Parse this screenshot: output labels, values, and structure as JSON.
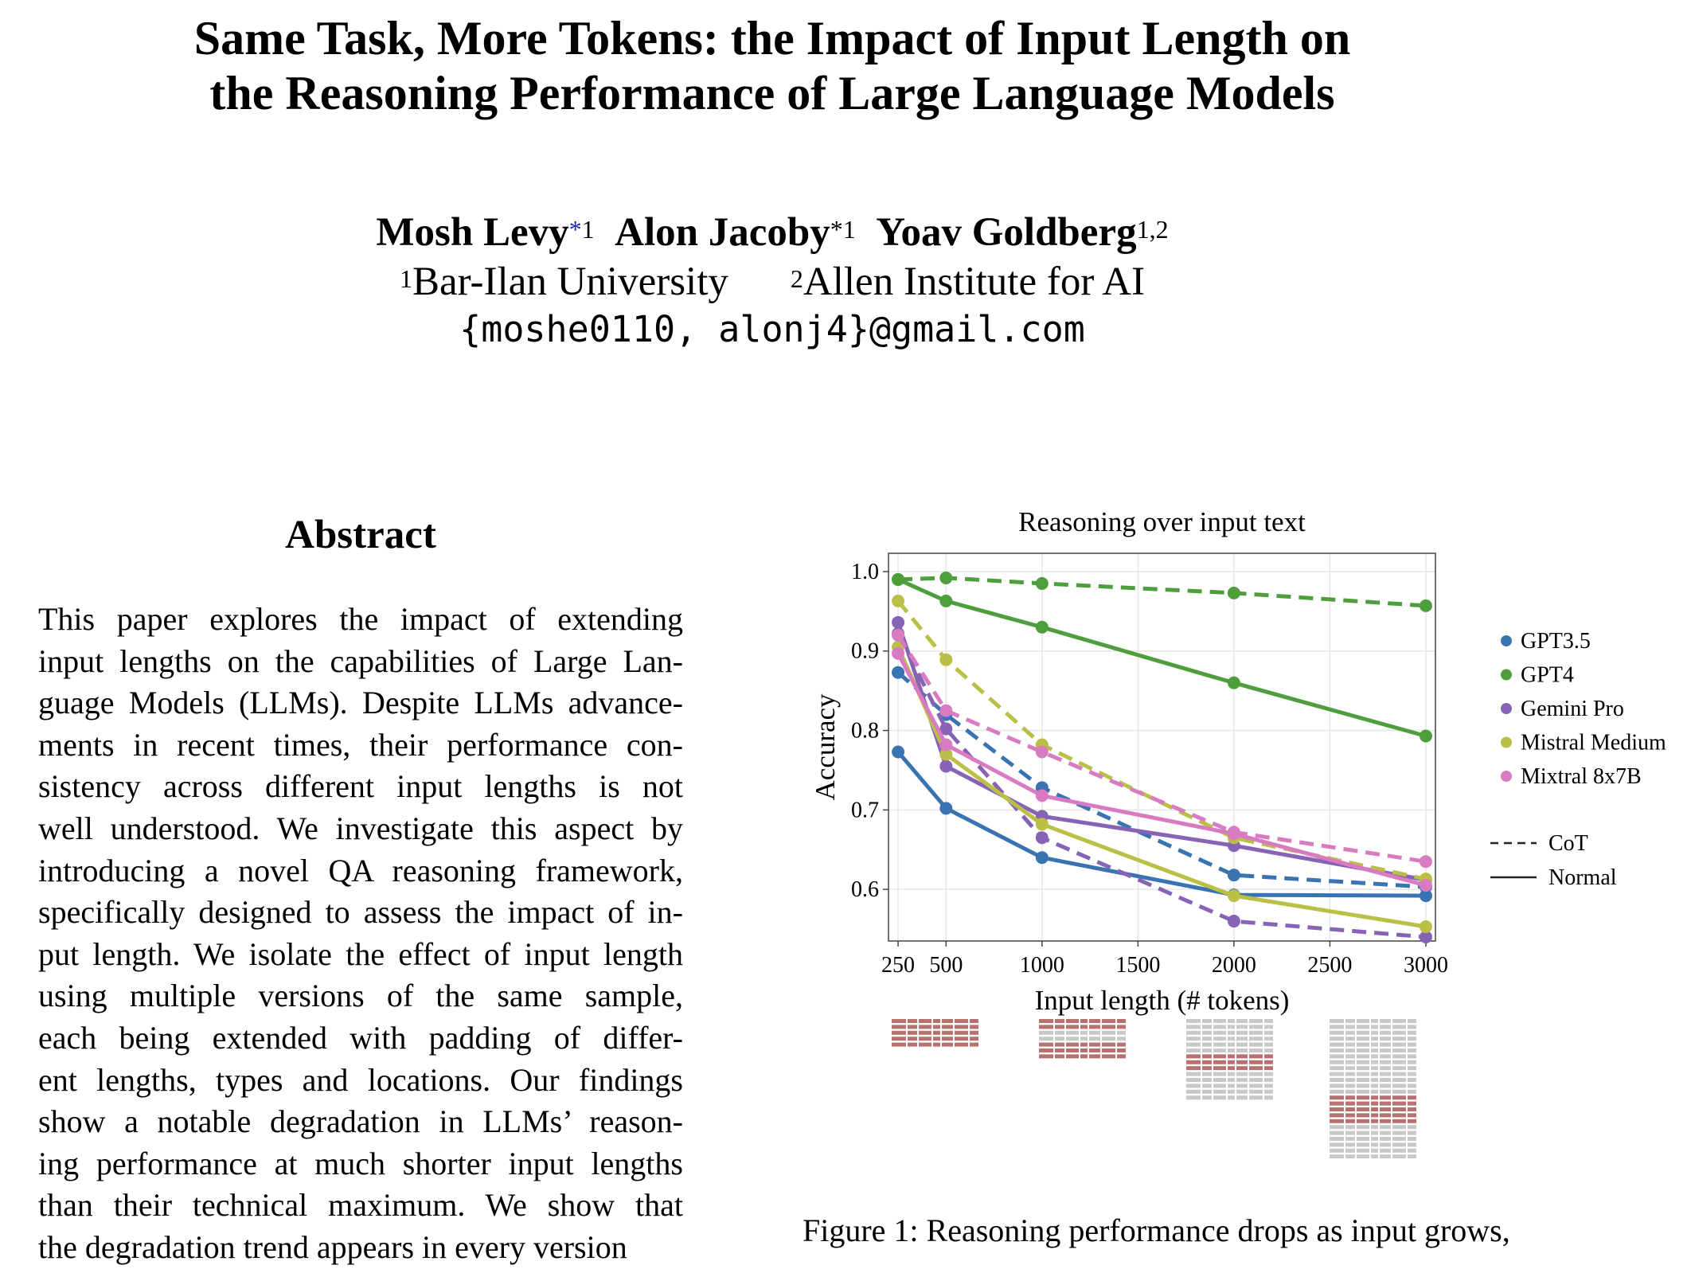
{
  "paper": {
    "title_line1": "Same Task, More Tokens: the Impact of Input Length on",
    "title_line2": "the Reasoning Performance of Large Language Models",
    "authors": [
      {
        "name": "Mosh Levy",
        "mark": "*",
        "sup": "1"
      },
      {
        "name": "Alon Jacoby",
        "mark": "*",
        "sup": "1"
      },
      {
        "name": "Yoav Goldberg",
        "mark": "",
        "sup": "1,2"
      }
    ],
    "affiliations": [
      {
        "sup": "1",
        "name": "Bar-Ilan University"
      },
      {
        "sup": "2",
        "name": "Allen Institute for AI"
      }
    ],
    "email": "{moshe0110, alonj4}@gmail.com"
  },
  "abstract": {
    "heading": "Abstract",
    "lines": [
      "This paper explores the impact of extending",
      "input lengths on the capabilities of Large Lan-",
      "guage Models (LLMs). Despite LLMs advance-",
      "ments in recent times, their performance con-",
      "sistency across different input lengths is not",
      "well understood. We investigate this aspect by",
      "introducing a novel QA reasoning framework,",
      "specifically designed to assess the impact of in-",
      "put length. We isolate the effect of input length",
      "using multiple versions of the same sample,",
      "each being extended with padding of differ-",
      "ent lengths, types and locations. Our findings",
      "show a notable degradation in LLMs’ reason-",
      "ing performance at much shorter input lengths",
      "than their technical maximum. We show that",
      "the degradation trend appears in every version"
    ]
  },
  "figure": {
    "caption": "Figure 1: Reasoning performance drops as input grows,"
  },
  "chart_data": {
    "type": "line",
    "title": "Reasoning over input text",
    "xlabel": "Input length (# tokens)",
    "ylabel": "Accuracy",
    "xlim": [
      200,
      3050
    ],
    "ylim": [
      0.535,
      1.023
    ],
    "xticks": [
      250,
      500,
      1000,
      1500,
      2000,
      2500,
      3000
    ],
    "yticks": [
      0.6,
      0.7,
      0.8,
      0.9,
      1.0
    ],
    "ytick_labels": [
      "0.6",
      "0.7",
      "0.8",
      "0.9",
      "1.0"
    ],
    "grid": true,
    "legend_position": "right",
    "x": [
      250,
      500,
      1000,
      2000,
      3000
    ],
    "series": [
      {
        "name": "GPT3.5",
        "color": "#3a73b2",
        "normal": [
          0.773,
          0.702,
          0.64,
          0.593,
          0.592
        ],
        "cot": [
          0.873,
          0.82,
          0.728,
          0.618,
          0.603
        ]
      },
      {
        "name": "GPT4",
        "color": "#4f9e3e",
        "normal": [
          0.99,
          0.963,
          0.93,
          0.86,
          0.793
        ],
        "cot": [
          0.99,
          0.992,
          0.985,
          0.973,
          0.957
        ]
      },
      {
        "name": "Gemini Pro",
        "color": "#8663b5",
        "normal": [
          0.936,
          0.755,
          0.692,
          0.655,
          0.612
        ],
        "cot": [
          0.922,
          0.802,
          0.665,
          0.56,
          0.54
        ]
      },
      {
        "name": "Mistral Medium",
        "color": "#bcbf45",
        "normal": [
          0.905,
          0.77,
          0.682,
          0.592,
          0.553
        ],
        "cot": [
          0.963,
          0.889,
          0.782,
          0.665,
          0.613
        ]
      },
      {
        "name": "Mixtral 8x7B",
        "color": "#d97bc3",
        "normal": [
          0.897,
          0.782,
          0.718,
          0.67,
          0.605
        ],
        "cot": [
          0.92,
          0.825,
          0.773,
          0.672,
          0.635
        ]
      }
    ],
    "line_styles": [
      {
        "label": "CoT",
        "dash": true
      },
      {
        "label": "Normal",
        "dash": false
      }
    ],
    "padding_colors": {
      "sample": "#b87171",
      "padding": "#c8c8c8"
    }
  }
}
